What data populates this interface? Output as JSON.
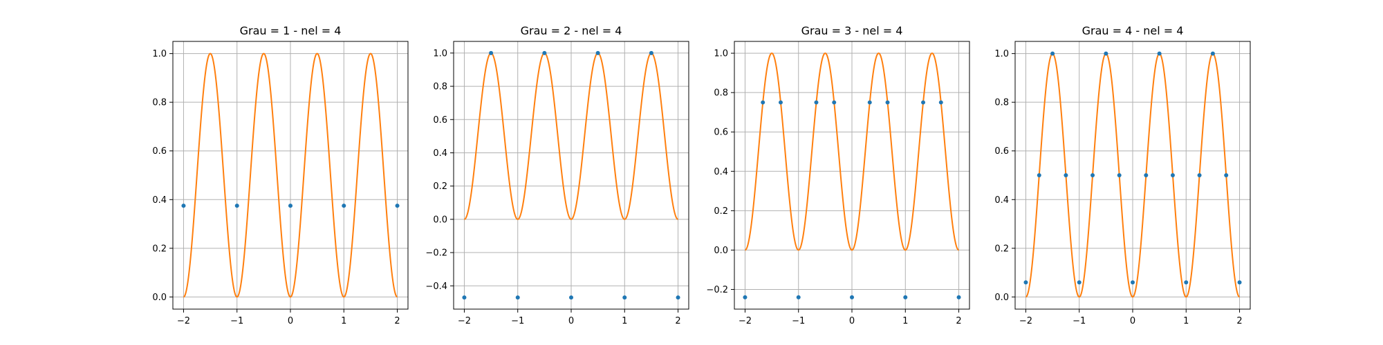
{
  "figure": {
    "background": "#ffffff",
    "curve_color": "#ff7f0e",
    "point_color": "#1f77b4",
    "grid_color": "#b0b0b0"
  },
  "chart_data": [
    {
      "type": "line",
      "title": "Grau = 1 - nel = 4",
      "xlabel": "",
      "ylabel": "",
      "xlim": [
        -2.2,
        2.2
      ],
      "ylim": [
        -0.05,
        1.05
      ],
      "grid": true,
      "xticks": [
        -2,
        -1,
        0,
        1,
        2
      ],
      "xtick_labels": [
        "−2",
        "−1",
        "0",
        "1",
        "2"
      ],
      "yticks": [
        0.0,
        0.2,
        0.4,
        0.6,
        0.8,
        1.0
      ],
      "ytick_labels": [
        "0.0",
        "0.2",
        "0.4",
        "0.6",
        "0.8",
        "1.0"
      ],
      "curve": {
        "function": "sin^2(pi*x)",
        "x_range": [
          -2,
          2
        ]
      },
      "points": {
        "x": [
          -2,
          -1,
          0,
          1,
          2
        ],
        "y": [
          0.375,
          0.375,
          0.375,
          0.375,
          0.375
        ]
      }
    },
    {
      "type": "line",
      "title": "Grau = 2 - nel = 4",
      "xlabel": "",
      "ylabel": "",
      "xlim": [
        -2.2,
        2.2
      ],
      "ylim": [
        -0.54,
        1.07
      ],
      "grid": true,
      "xticks": [
        -2,
        -1,
        0,
        1,
        2
      ],
      "xtick_labels": [
        "−2",
        "−1",
        "0",
        "1",
        "2"
      ],
      "yticks": [
        -0.4,
        -0.2,
        0.0,
        0.2,
        0.4,
        0.6,
        0.8,
        1.0
      ],
      "ytick_labels": [
        "−0.4",
        "−0.2",
        "0.0",
        "0.2",
        "0.4",
        "0.6",
        "0.8",
        "1.0"
      ],
      "curve": {
        "function": "sin^2(pi*x)",
        "x_range": [
          -2,
          2
        ]
      },
      "points": {
        "x": [
          -2,
          -1.5,
          -1,
          -0.5,
          0,
          0.5,
          1,
          1.5,
          2
        ],
        "y": [
          -0.47,
          1.0,
          -0.47,
          1.0,
          -0.47,
          1.0,
          -0.47,
          1.0,
          -0.47
        ]
      }
    },
    {
      "type": "line",
      "title": "Grau = 3 - nel = 4",
      "xlabel": "",
      "ylabel": "",
      "xlim": [
        -2.2,
        2.2
      ],
      "ylim": [
        -0.3,
        1.06
      ],
      "grid": true,
      "xticks": [
        -2,
        -1,
        0,
        1,
        2
      ],
      "xtick_labels": [
        "−2",
        "−1",
        "0",
        "1",
        "2"
      ],
      "yticks": [
        -0.2,
        0.0,
        0.2,
        0.4,
        0.6,
        0.8,
        1.0
      ],
      "ytick_labels": [
        "−0.2",
        "0.0",
        "0.2",
        "0.4",
        "0.6",
        "0.8",
        "1.0"
      ],
      "curve": {
        "function": "sin^2(pi*x)",
        "x_range": [
          -2,
          2
        ]
      },
      "points": {
        "x": [
          -2,
          -1.6667,
          -1.3333,
          -1,
          -0.6667,
          -0.3333,
          0,
          0.3333,
          0.6667,
          1,
          1.3333,
          1.6667,
          2
        ],
        "y": [
          -0.24,
          0.75,
          0.75,
          -0.24,
          0.75,
          0.75,
          -0.24,
          0.75,
          0.75,
          -0.24,
          0.75,
          0.75,
          -0.24
        ]
      }
    },
    {
      "type": "line",
      "title": "Grau = 4 - nel = 4",
      "xlabel": "",
      "ylabel": "",
      "xlim": [
        -2.2,
        2.2
      ],
      "ylim": [
        -0.05,
        1.05
      ],
      "grid": true,
      "xticks": [
        -2,
        -1,
        0,
        1,
        2
      ],
      "xtick_labels": [
        "−2",
        "−1",
        "0",
        "1",
        "2"
      ],
      "yticks": [
        0.0,
        0.2,
        0.4,
        0.6,
        0.8,
        1.0
      ],
      "ytick_labels": [
        "0.0",
        "0.2",
        "0.4",
        "0.6",
        "0.8",
        "1.0"
      ],
      "curve": {
        "function": "sin^2(pi*x)",
        "x_range": [
          -2,
          2
        ]
      },
      "points": {
        "x": [
          -2,
          -1.75,
          -1.5,
          -1.25,
          -1,
          -0.75,
          -0.5,
          -0.25,
          0,
          0.25,
          0.5,
          0.75,
          1,
          1.25,
          1.5,
          1.75,
          2
        ],
        "y": [
          0.06,
          0.5,
          1.0,
          0.5,
          0.06,
          0.5,
          1.0,
          0.5,
          0.06,
          0.5,
          1.0,
          0.5,
          0.06,
          0.5,
          1.0,
          0.5,
          0.06
        ]
      }
    }
  ]
}
